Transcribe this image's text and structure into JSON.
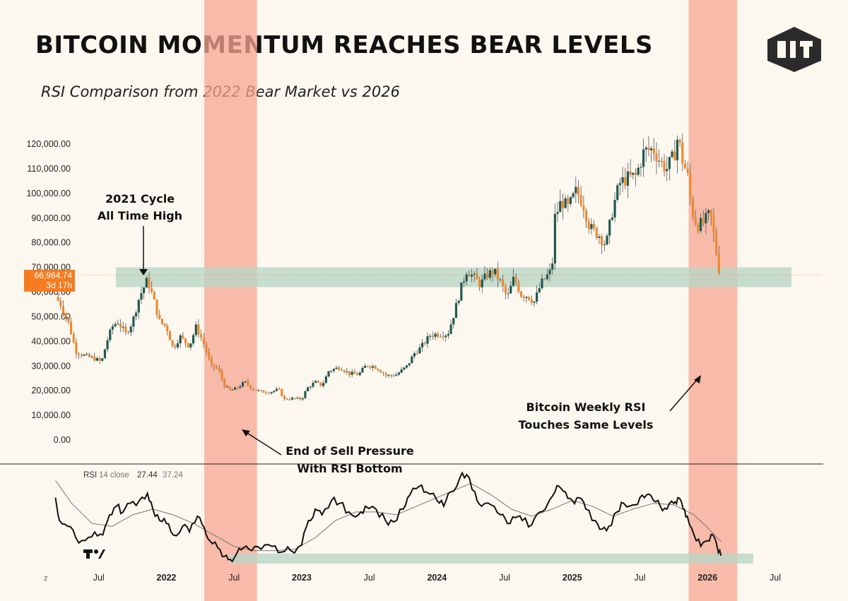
{
  "title": "BITCOIN MOMENTUM REACHES BEAR LEVELS",
  "subtitle": "RSI Comparison from 2022 Bear Market vs 2026",
  "logo_icon": "dlt-hexagon-logo",
  "colors": {
    "background": "#fdf8ef",
    "bull_candle": "#1f5a52",
    "bear_candle": "#f0892d",
    "highlight_band": "#f7a792",
    "support_zone": "#b9d6c5",
    "price_badge": "#f57c20"
  },
  "price_badge": {
    "price": "66,964.74",
    "countdown": "3d 17h"
  },
  "rsi_legend": {
    "name": "RSI",
    "params": "14 close",
    "value": "27.44",
    "ma_value": "37.24"
  },
  "tradingview_icon": "tradingview-logo-icon",
  "annotations": [
    {
      "id": "ath",
      "lines": [
        "2021 Cycle",
        "All Time High"
      ]
    },
    {
      "id": "sell",
      "lines": [
        "End of Sell Pressure",
        "With RSI Bottom"
      ]
    },
    {
      "id": "rsi",
      "lines": [
        "Bitcoin Weekly RSI",
        "Touches Same Levels"
      ]
    }
  ],
  "chart_data": {
    "type": "candlestick",
    "timeframe": "weekly",
    "y_tick_labels": [
      "120,000.00",
      "110,000.00",
      "100,000.00",
      "90,000.00",
      "80,000.00",
      "70,000.00",
      "60,000.00",
      "50,000.00",
      "40,000.00",
      "30,000.00",
      "20,000.00",
      "10,000.00",
      "0.00"
    ],
    "ylim": [
      0,
      125000
    ],
    "x_tick_labels": [
      {
        "t": 2021.5,
        "label": "Jul",
        "year": false
      },
      {
        "t": 2022.0,
        "label": "2022",
        "year": true
      },
      {
        "t": 2022.5,
        "label": "Jul",
        "year": false
      },
      {
        "t": 2023.0,
        "label": "2023",
        "year": true
      },
      {
        "t": 2023.5,
        "label": "Jul",
        "year": false
      },
      {
        "t": 2024.0,
        "label": "2024",
        "year": true
      },
      {
        "t": 2024.5,
        "label": "Jul",
        "year": false
      },
      {
        "t": 2025.0,
        "label": "2025",
        "year": true
      },
      {
        "t": 2025.5,
        "label": "Jul",
        "year": false
      },
      {
        "t": 2026.0,
        "label": "2026",
        "year": true
      },
      {
        "t": 2026.5,
        "label": "Jul",
        "year": false
      }
    ],
    "price_path": [
      [
        2021.18,
        58000
      ],
      [
        2021.22,
        55000
      ],
      [
        2021.28,
        47000
      ],
      [
        2021.33,
        36000
      ],
      [
        2021.4,
        34000
      ],
      [
        2021.47,
        33000
      ],
      [
        2021.52,
        31500
      ],
      [
        2021.56,
        40000
      ],
      [
        2021.6,
        46000
      ],
      [
        2021.64,
        48000
      ],
      [
        2021.7,
        43000
      ],
      [
        2021.75,
        48000
      ],
      [
        2021.8,
        58000
      ],
      [
        2021.86,
        65000
      ],
      [
        2021.9,
        58000
      ],
      [
        2021.95,
        48000
      ],
      [
        2022.0,
        46000
      ],
      [
        2022.05,
        37000
      ],
      [
        2022.1,
        42000
      ],
      [
        2022.17,
        38000
      ],
      [
        2022.22,
        46000
      ],
      [
        2022.27,
        40000
      ],
      [
        2022.33,
        30000
      ],
      [
        2022.38,
        29000
      ],
      [
        2022.43,
        22000
      ],
      [
        2022.47,
        20000
      ],
      [
        2022.52,
        21000
      ],
      [
        2022.58,
        23500
      ],
      [
        2022.63,
        21000
      ],
      [
        2022.7,
        19500
      ],
      [
        2022.77,
        19500
      ],
      [
        2022.83,
        20500
      ],
      [
        2022.87,
        16500
      ],
      [
        2022.93,
        16800
      ],
      [
        2023.0,
        16600
      ],
      [
        2023.04,
        21000
      ],
      [
        2023.1,
        23500
      ],
      [
        2023.15,
        22000
      ],
      [
        2023.2,
        28000
      ],
      [
        2023.28,
        29500
      ],
      [
        2023.35,
        27000
      ],
      [
        2023.42,
        26500
      ],
      [
        2023.48,
        30500
      ],
      [
        2023.55,
        29500
      ],
      [
        2023.63,
        26000
      ],
      [
        2023.7,
        26500
      ],
      [
        2023.78,
        30000
      ],
      [
        2023.83,
        35000
      ],
      [
        2023.88,
        37500
      ],
      [
        2023.95,
        42500
      ],
      [
        2024.0,
        43000
      ],
      [
        2024.08,
        43000
      ],
      [
        2024.13,
        52000
      ],
      [
        2024.18,
        62000
      ],
      [
        2024.22,
        69000
      ],
      [
        2024.27,
        66000
      ],
      [
        2024.32,
        63000
      ],
      [
        2024.37,
        67000
      ],
      [
        2024.42,
        68500
      ],
      [
        2024.47,
        64000
      ],
      [
        2024.52,
        57500
      ],
      [
        2024.57,
        66000
      ],
      [
        2024.62,
        59000
      ],
      [
        2024.67,
        58500
      ],
      [
        2024.72,
        56000
      ],
      [
        2024.77,
        63500
      ],
      [
        2024.82,
        67000
      ],
      [
        2024.85,
        69000
      ],
      [
        2024.87,
        90000
      ],
      [
        2024.92,
        97000
      ],
      [
        2024.97,
        94000
      ],
      [
        2025.03,
        101000
      ],
      [
        2025.08,
        96000
      ],
      [
        2025.13,
        86000
      ],
      [
        2025.2,
        83000
      ],
      [
        2025.25,
        79000
      ],
      [
        2025.3,
        94000
      ],
      [
        2025.35,
        104000
      ],
      [
        2025.4,
        106000
      ],
      [
        2025.47,
        107000
      ],
      [
        2025.53,
        117000
      ],
      [
        2025.6,
        118000
      ],
      [
        2025.65,
        113000
      ],
      [
        2025.7,
        110000
      ],
      [
        2025.75,
        115000
      ],
      [
        2025.78,
        123000
      ],
      [
        2025.82,
        112000
      ],
      [
        2025.85,
        108000
      ],
      [
        2025.88,
        94000
      ],
      [
        2025.92,
        87000
      ],
      [
        2025.97,
        88000
      ],
      [
        2026.02,
        92000
      ],
      [
        2026.06,
        78000
      ],
      [
        2026.08,
        70000
      ],
      [
        2026.1,
        66964
      ]
    ],
    "rsi_path": [
      [
        2021.18,
        68
      ],
      [
        2021.21,
        52
      ],
      [
        2021.27,
        48
      ],
      [
        2021.33,
        40
      ],
      [
        2021.4,
        38
      ],
      [
        2021.47,
        44
      ],
      [
        2021.53,
        42
      ],
      [
        2021.58,
        56
      ],
      [
        2021.63,
        62
      ],
      [
        2021.68,
        58
      ],
      [
        2021.73,
        64
      ],
      [
        2021.8,
        66
      ],
      [
        2021.86,
        71
      ],
      [
        2021.9,
        60
      ],
      [
        2021.95,
        52
      ],
      [
        2022.0,
        50
      ],
      [
        2022.05,
        42
      ],
      [
        2022.12,
        48
      ],
      [
        2022.17,
        44
      ],
      [
        2022.23,
        55
      ],
      [
        2022.28,
        47
      ],
      [
        2022.32,
        38
      ],
      [
        2022.38,
        33
      ],
      [
        2022.43,
        27
      ],
      [
        2022.47,
        25
      ],
      [
        2022.52,
        29
      ],
      [
        2022.57,
        33
      ],
      [
        2022.63,
        31
      ],
      [
        2022.7,
        32
      ],
      [
        2022.78,
        34
      ],
      [
        2022.85,
        30
      ],
      [
        2022.92,
        31
      ],
      [
        2023.0,
        35
      ],
      [
        2023.05,
        52
      ],
      [
        2023.1,
        60
      ],
      [
        2023.15,
        56
      ],
      [
        2023.22,
        66
      ],
      [
        2023.28,
        64
      ],
      [
        2023.35,
        58
      ],
      [
        2023.42,
        56
      ],
      [
        2023.47,
        62
      ],
      [
        2023.55,
        60
      ],
      [
        2023.62,
        52
      ],
      [
        2023.68,
        51
      ],
      [
        2023.75,
        60
      ],
      [
        2023.8,
        70
      ],
      [
        2023.87,
        76
      ],
      [
        2023.92,
        72
      ],
      [
        2024.0,
        66
      ],
      [
        2024.05,
        62
      ],
      [
        2024.1,
        72
      ],
      [
        2024.17,
        82
      ],
      [
        2024.22,
        84
      ],
      [
        2024.28,
        72
      ],
      [
        2024.33,
        62
      ],
      [
        2024.4,
        63
      ],
      [
        2024.47,
        56
      ],
      [
        2024.52,
        50
      ],
      [
        2024.58,
        54
      ],
      [
        2024.63,
        52
      ],
      [
        2024.7,
        49
      ],
      [
        2024.76,
        58
      ],
      [
        2024.82,
        64
      ],
      [
        2024.86,
        70
      ],
      [
        2024.9,
        76
      ],
      [
        2024.95,
        72
      ],
      [
        2025.0,
        66
      ],
      [
        2025.05,
        68
      ],
      [
        2025.1,
        60
      ],
      [
        2025.17,
        52
      ],
      [
        2025.22,
        46
      ],
      [
        2025.27,
        48
      ],
      [
        2025.33,
        58
      ],
      [
        2025.38,
        64
      ],
      [
        2025.45,
        63
      ],
      [
        2025.5,
        68
      ],
      [
        2025.55,
        70
      ],
      [
        2025.6,
        66
      ],
      [
        2025.65,
        62
      ],
      [
        2025.7,
        60
      ],
      [
        2025.75,
        64
      ],
      [
        2025.78,
        68
      ],
      [
        2025.82,
        60
      ],
      [
        2025.85,
        55
      ],
      [
        2025.9,
        42
      ],
      [
        2025.95,
        34
      ],
      [
        2026.0,
        38
      ],
      [
        2026.04,
        42
      ],
      [
        2026.07,
        34
      ],
      [
        2026.1,
        27.44
      ]
    ],
    "rsi_ma_path": [
      [
        2021.18,
        80
      ],
      [
        2021.3,
        64
      ],
      [
        2021.45,
        50
      ],
      [
        2021.6,
        48
      ],
      [
        2021.75,
        56
      ],
      [
        2021.9,
        60
      ],
      [
        2022.05,
        56
      ],
      [
        2022.2,
        50
      ],
      [
        2022.35,
        42
      ],
      [
        2022.5,
        34
      ],
      [
        2022.65,
        31
      ],
      [
        2022.8,
        31
      ],
      [
        2022.95,
        32
      ],
      [
        2023.1,
        40
      ],
      [
        2023.25,
        52
      ],
      [
        2023.4,
        58
      ],
      [
        2023.55,
        58
      ],
      [
        2023.7,
        56
      ],
      [
        2023.85,
        62
      ],
      [
        2024.0,
        68
      ],
      [
        2024.15,
        74
      ],
      [
        2024.25,
        78
      ],
      [
        2024.4,
        70
      ],
      [
        2024.55,
        60
      ],
      [
        2024.7,
        55
      ],
      [
        2024.85,
        60
      ],
      [
        2025.0,
        66
      ],
      [
        2025.15,
        62
      ],
      [
        2025.3,
        55
      ],
      [
        2025.45,
        60
      ],
      [
        2025.6,
        64
      ],
      [
        2025.75,
        63
      ],
      [
        2025.9,
        56
      ],
      [
        2026.0,
        47
      ],
      [
        2026.1,
        37.24
      ]
    ],
    "highlight_periods": [
      [
        2022.28,
        2022.67
      ],
      [
        2025.86,
        2026.22
      ]
    ],
    "support_zone_price": [
      62000,
      70000
    ],
    "rsi_support_zone": [
      22,
      29
    ]
  }
}
